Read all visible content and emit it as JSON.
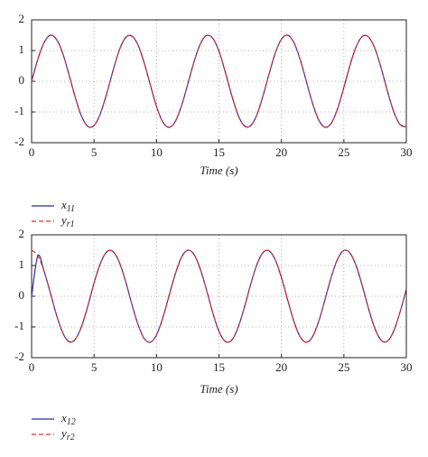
{
  "chart_data": [
    {
      "type": "line",
      "xlabel": "Time (s)",
      "x": [
        0,
        0.5,
        1,
        1.5,
        2,
        2.5,
        3,
        3.5,
        4,
        4.5,
        5,
        5.5,
        6,
        6.5,
        7,
        7.5,
        8,
        8.5,
        9,
        9.5,
        10,
        10.5,
        11,
        11.5,
        12,
        12.5,
        13,
        13.5,
        14,
        14.5,
        15,
        15.5,
        16,
        16.5,
        17,
        17.5,
        18,
        18.5,
        19,
        19.5,
        20,
        20.5,
        21,
        21.5,
        22,
        22.5,
        23,
        23.5,
        24,
        24.5,
        25,
        25.5,
        26,
        26.5,
        27,
        27.5,
        28,
        28.5,
        29,
        29.5,
        30
      ],
      "xlim": [
        0,
        30
      ],
      "xticks": [
        0,
        5,
        10,
        15,
        20,
        25,
        30
      ],
      "ylim": [
        -2,
        2
      ],
      "yticks": [
        -2,
        -1,
        0,
        1,
        2
      ],
      "grid": true,
      "series": [
        {
          "name": "x11",
          "color": "#2a2aa8",
          "dashed": false,
          "values": [
            0,
            0.72,
            1.26,
            1.5,
            1.36,
            0.9,
            0.21,
            -0.53,
            -1.14,
            -1.47,
            -1.44,
            -1.06,
            -0.42,
            0.32,
            0.99,
            1.41,
            1.48,
            1.2,
            0.62,
            -0.11,
            -0.82,
            -1.32,
            -1.5,
            -1.31,
            -0.8,
            -0.1,
            0.63,
            1.21,
            1.49,
            1.4,
            0.98,
            0.31,
            -0.43,
            -1.07,
            -1.44,
            -1.46,
            -1.13,
            -0.51,
            0.22,
            0.91,
            1.37,
            1.5,
            1.26,
            0.71,
            -0.01,
            -0.73,
            -1.27,
            -1.5,
            -1.36,
            -0.89,
            -0.2,
            0.54,
            1.14,
            1.47,
            1.43,
            1.05,
            0.41,
            -0.34,
            -1,
            -1.41,
            -1.48
          ]
        },
        {
          "name": "yr1",
          "color": "#e0302c",
          "dashed": true,
          "values": [
            0,
            0.72,
            1.26,
            1.5,
            1.36,
            0.9,
            0.21,
            -0.53,
            -1.14,
            -1.47,
            -1.44,
            -1.06,
            -0.42,
            0.32,
            0.99,
            1.41,
            1.48,
            1.2,
            0.62,
            -0.11,
            -0.82,
            -1.32,
            -1.5,
            -1.31,
            -0.8,
            -0.1,
            0.63,
            1.21,
            1.49,
            1.4,
            0.98,
            0.31,
            -0.43,
            -1.07,
            -1.44,
            -1.46,
            -1.13,
            -0.51,
            0.22,
            0.91,
            1.37,
            1.5,
            1.26,
            0.71,
            -0.01,
            -0.73,
            -1.27,
            -1.5,
            -1.36,
            -0.89,
            -0.2,
            0.54,
            1.14,
            1.47,
            1.43,
            1.05,
            0.41,
            -0.34,
            -1,
            -1.41,
            -1.48
          ]
        }
      ]
    },
    {
      "type": "line",
      "xlabel": "Time (s)",
      "x": [
        0,
        0.5,
        1,
        1.5,
        2,
        2.5,
        3,
        3.5,
        4,
        4.5,
        5,
        5.5,
        6,
        6.5,
        7,
        7.5,
        8,
        8.5,
        9,
        9.5,
        10,
        10.5,
        11,
        11.5,
        12,
        12.5,
        13,
        13.5,
        14,
        14.5,
        15,
        15.5,
        16,
        16.5,
        17,
        17.5,
        18,
        18.5,
        19,
        19.5,
        20,
        20.5,
        21,
        21.5,
        22,
        22.5,
        23,
        23.5,
        24,
        24.5,
        25,
        25.5,
        26,
        26.5,
        27,
        27.5,
        28,
        28.5,
        29,
        29.5,
        30
      ],
      "xlim": [
        0,
        30
      ],
      "xticks": [
        0,
        5,
        10,
        15,
        20,
        25,
        30
      ],
      "ylim": [
        -2,
        2
      ],
      "yticks": [
        -2,
        -1,
        0,
        1,
        2
      ],
      "grid": true,
      "series": [
        {
          "name": "x12",
          "color": "#2a2aa8",
          "dashed": false,
          "values": [
            0,
            1.32,
            0.81,
            0.11,
            -0.62,
            -1.2,
            -1.48,
            -1.4,
            -0.98,
            -0.32,
            0.43,
            1.06,
            1.44,
            1.46,
            1.13,
            0.52,
            -0.22,
            -0.9,
            -1.37,
            -1.5,
            -1.26,
            -0.71,
            0.01,
            0.72,
            1.27,
            1.5,
            1.36,
            0.89,
            0.21,
            -0.53,
            -1.14,
            -1.47,
            -1.44,
            -1.05,
            -0.41,
            0.33,
            0.99,
            1.41,
            1.48,
            1.19,
            0.61,
            -0.12,
            -0.82,
            -1.32,
            -1.5,
            -1.31,
            -0.8,
            -0.09,
            0.64,
            1.21,
            1.49,
            1.4,
            0.97,
            0.3,
            -0.44,
            -1.07,
            -1.44,
            -1.46,
            -1.12,
            -0.51,
            0.23
          ]
        },
        {
          "name": "yr2",
          "color": "#e0302c",
          "dashed": true,
          "values": [
            1.5,
            1.32,
            0.81,
            0.11,
            -0.62,
            -1.2,
            -1.48,
            -1.4,
            -0.98,
            -0.32,
            0.43,
            1.06,
            1.44,
            1.46,
            1.13,
            0.52,
            -0.22,
            -0.9,
            -1.37,
            -1.5,
            -1.26,
            -0.71,
            0.01,
            0.72,
            1.27,
            1.5,
            1.36,
            0.89,
            0.21,
            -0.53,
            -1.14,
            -1.47,
            -1.44,
            -1.05,
            -0.41,
            0.33,
            0.99,
            1.41,
            1.48,
            1.19,
            0.61,
            -0.12,
            -0.82,
            -1.32,
            -1.5,
            -1.31,
            -0.8,
            -0.09,
            0.64,
            1.21,
            1.49,
            1.4,
            0.97,
            0.3,
            -0.44,
            -1.07,
            -1.44,
            -1.46,
            -1.12,
            -0.51,
            0.23
          ]
        }
      ]
    }
  ]
}
